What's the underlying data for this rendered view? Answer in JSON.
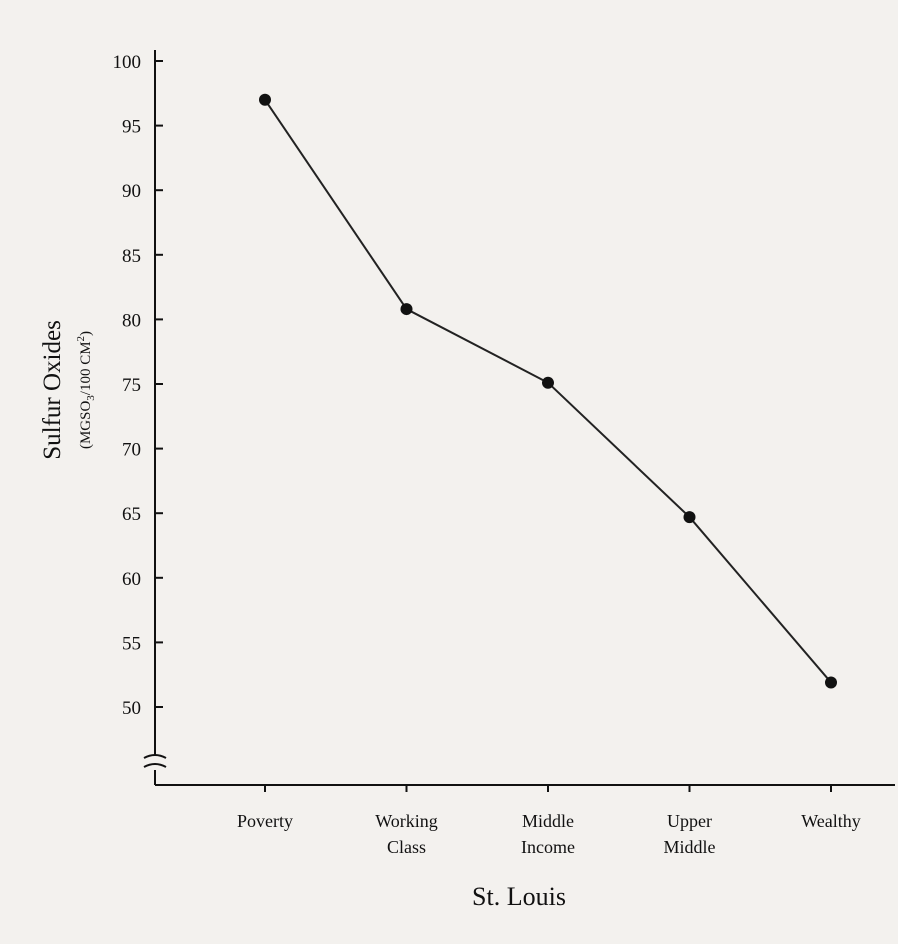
{
  "chart_data": {
    "type": "line",
    "categories": [
      [
        "Poverty"
      ],
      [
        "Working",
        "Class"
      ],
      [
        "Middle",
        "Income"
      ],
      [
        "Upper",
        "Middle"
      ],
      [
        "Wealthy"
      ]
    ],
    "values": [
      97,
      80.8,
      75.1,
      64.7,
      51.9
    ],
    "title": "",
    "xlabel": "St. Louis",
    "ylabel": "Sulfur Oxides",
    "ylabel_unit_parts": [
      "(MGSO",
      "3",
      "/100 CM",
      "2",
      ")"
    ],
    "ylim": [
      50,
      100
    ],
    "yticks": [
      "50",
      "55",
      "60",
      "65",
      "70",
      "75",
      "80",
      "85",
      "90",
      "95",
      "100"
    ],
    "axis_break": true,
    "grid": false,
    "marker": "filled-circle",
    "colors": {
      "line": "#222222",
      "marker": "#111111",
      "axis": "#111111",
      "background": "#f3f1ee"
    }
  }
}
